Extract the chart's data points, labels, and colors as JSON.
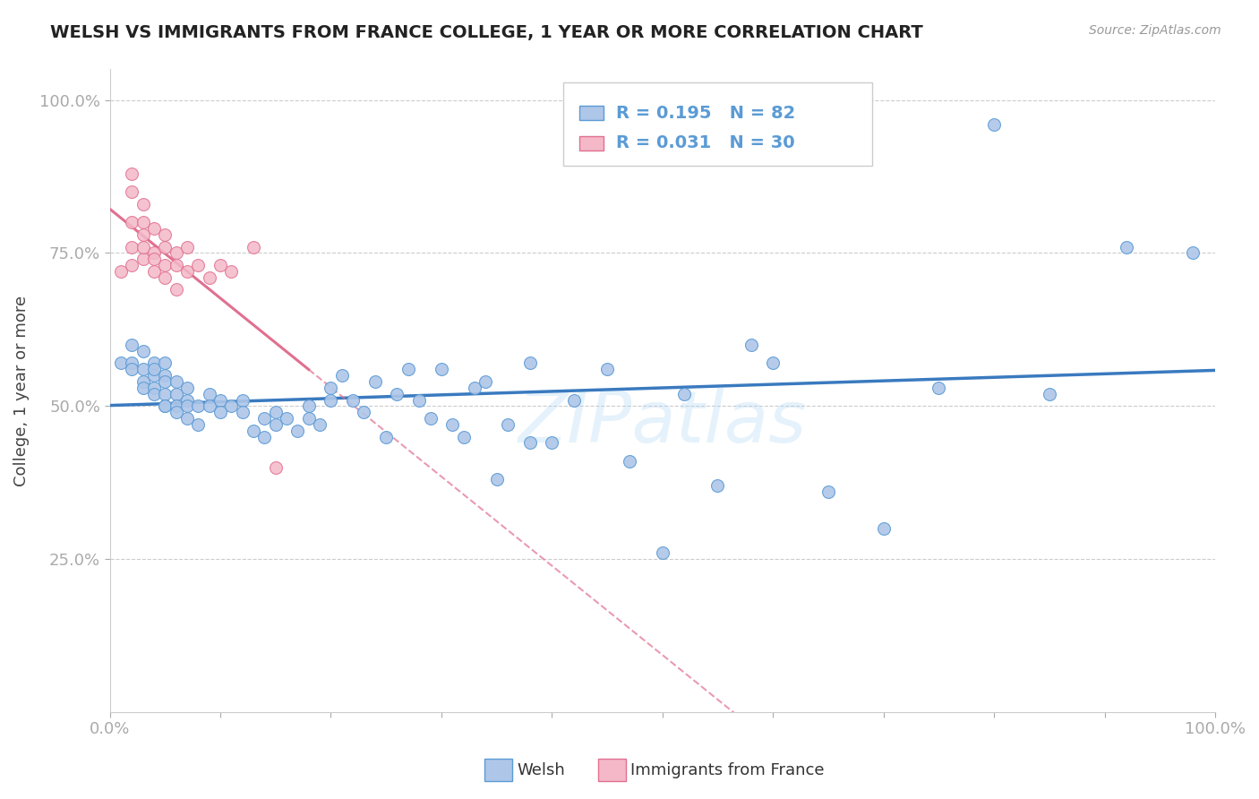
{
  "title": "WELSH VS IMMIGRANTS FROM FRANCE COLLEGE, 1 YEAR OR MORE CORRELATION CHART",
  "source_text": "Source: ZipAtlas.com",
  "ylabel": "College, 1 year or more",
  "xlim": [
    0.0,
    1.0
  ],
  "ylim": [
    0.0,
    1.05
  ],
  "y_tick_labels": [
    "25.0%",
    "50.0%",
    "75.0%",
    "100.0%"
  ],
  "y_tick_positions": [
    0.25,
    0.5,
    0.75,
    1.0
  ],
  "welsh_color": "#aec6e8",
  "welsh_edge_color": "#5b9bd5",
  "france_color": "#f4b8c8",
  "france_edge_color": "#e07090",
  "welsh_line_color": "#3a7abf",
  "france_line_color": "#e07090",
  "legend_welsh_R": "0.195",
  "legend_welsh_N": "82",
  "legend_france_R": "0.031",
  "legend_france_N": "30",
  "watermark": "ZIPatlas",
  "welsh_x": [
    0.01,
    0.02,
    0.02,
    0.02,
    0.03,
    0.03,
    0.03,
    0.03,
    0.04,
    0.04,
    0.04,
    0.04,
    0.04,
    0.05,
    0.05,
    0.05,
    0.05,
    0.05,
    0.05,
    0.06,
    0.06,
    0.06,
    0.06,
    0.07,
    0.07,
    0.07,
    0.07,
    0.08,
    0.08,
    0.09,
    0.09,
    0.1,
    0.1,
    0.11,
    0.12,
    0.12,
    0.13,
    0.14,
    0.14,
    0.15,
    0.15,
    0.16,
    0.17,
    0.18,
    0.18,
    0.19,
    0.2,
    0.2,
    0.21,
    0.22,
    0.23,
    0.24,
    0.25,
    0.26,
    0.27,
    0.28,
    0.29,
    0.3,
    0.31,
    0.32,
    0.33,
    0.34,
    0.35,
    0.36,
    0.38,
    0.38,
    0.4,
    0.42,
    0.45,
    0.47,
    0.5,
    0.52,
    0.55,
    0.58,
    0.6,
    0.65,
    0.7,
    0.75,
    0.8,
    0.85,
    0.92,
    0.98
  ],
  "welsh_y": [
    0.57,
    0.6,
    0.57,
    0.56,
    0.59,
    0.56,
    0.54,
    0.53,
    0.57,
    0.55,
    0.53,
    0.52,
    0.56,
    0.57,
    0.55,
    0.54,
    0.52,
    0.5,
    0.5,
    0.54,
    0.52,
    0.5,
    0.49,
    0.53,
    0.51,
    0.5,
    0.48,
    0.5,
    0.47,
    0.52,
    0.5,
    0.51,
    0.49,
    0.5,
    0.51,
    0.49,
    0.46,
    0.48,
    0.45,
    0.49,
    0.47,
    0.48,
    0.46,
    0.5,
    0.48,
    0.47,
    0.53,
    0.51,
    0.55,
    0.51,
    0.49,
    0.54,
    0.45,
    0.52,
    0.56,
    0.51,
    0.48,
    0.56,
    0.47,
    0.45,
    0.53,
    0.54,
    0.38,
    0.47,
    0.44,
    0.57,
    0.44,
    0.51,
    0.56,
    0.41,
    0.26,
    0.52,
    0.37,
    0.6,
    0.57,
    0.36,
    0.3,
    0.53,
    0.96,
    0.52,
    0.76,
    0.75
  ],
  "france_x": [
    0.01,
    0.02,
    0.02,
    0.02,
    0.02,
    0.02,
    0.03,
    0.03,
    0.03,
    0.03,
    0.03,
    0.04,
    0.04,
    0.04,
    0.04,
    0.05,
    0.05,
    0.05,
    0.05,
    0.06,
    0.06,
    0.06,
    0.07,
    0.07,
    0.08,
    0.09,
    0.1,
    0.11,
    0.13,
    0.15
  ],
  "france_y": [
    0.72,
    0.8,
    0.76,
    0.73,
    0.88,
    0.85,
    0.78,
    0.8,
    0.74,
    0.76,
    0.83,
    0.79,
    0.75,
    0.74,
    0.72,
    0.76,
    0.78,
    0.73,
    0.71,
    0.75,
    0.73,
    0.69,
    0.76,
    0.72,
    0.73,
    0.71,
    0.73,
    0.72,
    0.76,
    0.4
  ]
}
